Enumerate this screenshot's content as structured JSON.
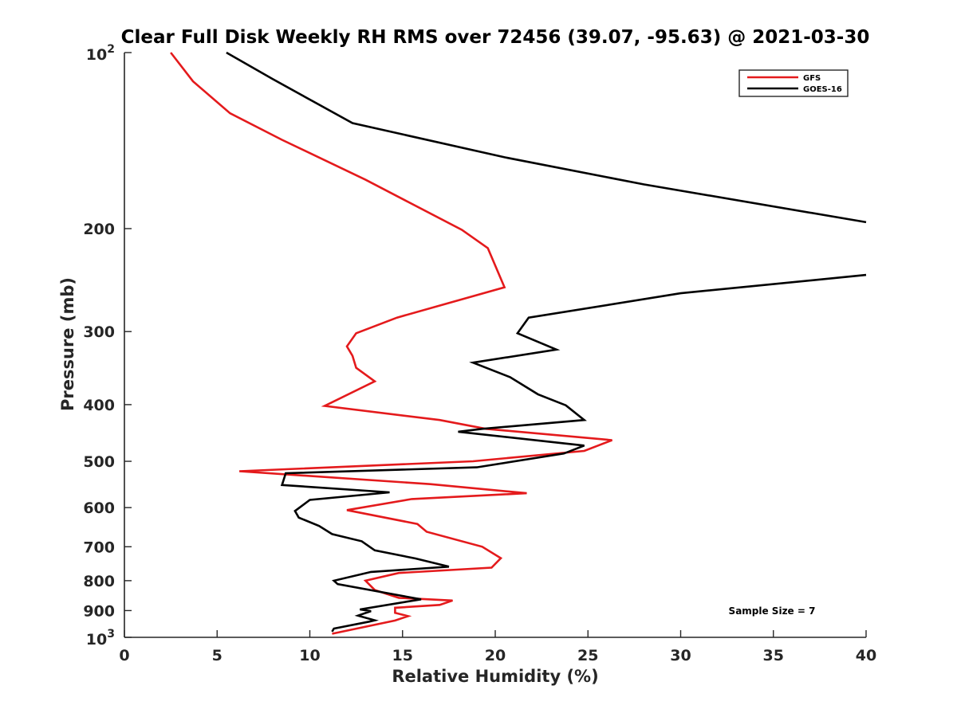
{
  "chart_data": {
    "type": "line",
    "title": "Clear Full Disk Weekly RH RMS over 72456 (39.07, -95.63) @ 2021-03-30",
    "xlabel": "Relative Humidity (%)",
    "ylabel": "Pressure (mb)",
    "xlim": [
      0,
      40
    ],
    "ylim": [
      100,
      1000
    ],
    "yscale": "log",
    "yreversed": true,
    "xticks": [
      {
        "value": 0,
        "label": "0"
      },
      {
        "value": 5,
        "label": "5"
      },
      {
        "value": 10,
        "label": "10"
      },
      {
        "value": 15,
        "label": "15"
      },
      {
        "value": 20,
        "label": "20"
      },
      {
        "value": 25,
        "label": "25"
      },
      {
        "value": 30,
        "label": "30"
      },
      {
        "value": 35,
        "label": "35"
      },
      {
        "value": 40,
        "label": "40"
      }
    ],
    "yticks": [
      {
        "value": 100,
        "base": "10",
        "exp": "2"
      },
      {
        "value": 200,
        "label": "200"
      },
      {
        "value": 300,
        "label": "300"
      },
      {
        "value": 400,
        "label": "400"
      },
      {
        "value": 500,
        "label": "500"
      },
      {
        "value": 600,
        "label": "600"
      },
      {
        "value": 700,
        "label": "700"
      },
      {
        "value": 800,
        "label": "800"
      },
      {
        "value": 900,
        "label": "900"
      },
      {
        "value": 1000,
        "base": "10",
        "exp": "3"
      }
    ],
    "legend_position": "top-right",
    "annotation": "Sample Size = 7",
    "series": [
      {
        "name": "GFS",
        "color": "#e41a1c",
        "x": [
          2.5,
          3.7,
          5.7,
          8.5,
          13.0,
          18.2,
          19.6,
          20.5,
          14.7,
          12.5,
          12.0,
          12.3,
          12.5,
          13.5,
          10.8,
          17.0,
          19.5,
          26.3,
          24.8,
          18.8,
          6.2,
          16.5,
          21.7,
          15.5,
          12.0,
          15.8,
          16.3,
          19.3,
          20.3,
          19.8,
          14.8,
          13.0,
          13.5,
          14.8,
          17.7,
          17.0,
          14.6,
          14.6,
          15.3,
          14.6,
          11.2
        ],
        "y": [
          100,
          112,
          127,
          141,
          165,
          201,
          216,
          252,
          284,
          302,
          318,
          330,
          346,
          365,
          402,
          425,
          440,
          460,
          480,
          500,
          520,
          547,
          567,
          580,
          606,
          640,
          660,
          700,
          732,
          760,
          776,
          800,
          830,
          856,
          865,
          880,
          890,
          908,
          920,
          936,
          986
        ]
      },
      {
        "name": "GOES-16",
        "color": "#000000",
        "x": [
          5.5,
          8.0,
          12.3,
          20.5,
          28.0,
          40.0,
          null,
          40.0,
          30.0,
          21.8,
          21.2,
          23.3,
          18.8,
          20.8,
          22.3,
          23.8,
          24.8,
          19.3,
          18.0,
          24.8,
          23.7,
          19.0,
          8.7,
          8.5,
          14.3,
          10.0,
          9.2,
          9.4,
          10.5,
          11.2,
          12.8,
          13.5,
          15.7,
          17.5,
          13.3,
          11.3,
          11.5,
          16.0,
          12.7,
          13.3,
          12.6,
          13.5,
          13.2,
          11.3,
          11.2
        ],
        "y": [
          100,
          111,
          132,
          151,
          168,
          195,
          null,
          240,
          258,
          284,
          302,
          322,
          339,
          359,
          384,
          401,
          425,
          440,
          445,
          470,
          485,
          512,
          524,
          549,
          565,
          582,
          608,
          624,
          645,
          666,
          685,
          710,
          733,
          757,
          773,
          800,
          811,
          861,
          896,
          902,
          918,
          935,
          940,
          966,
          978
        ]
      }
    ]
  }
}
